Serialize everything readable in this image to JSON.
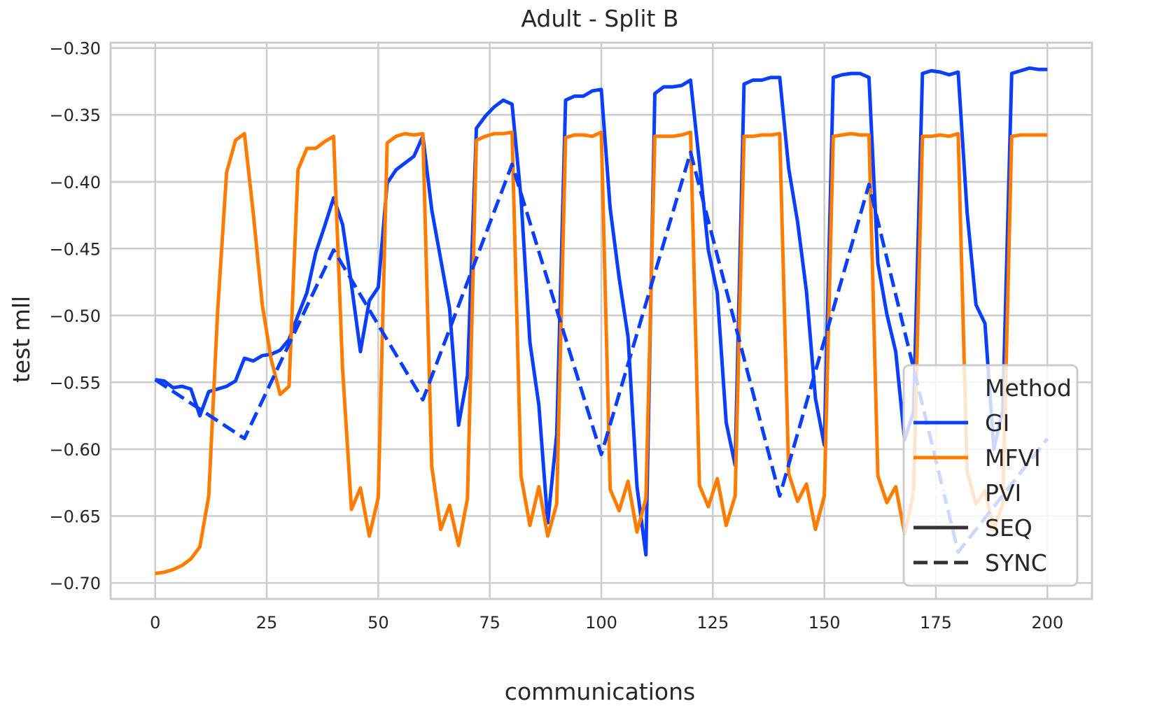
{
  "chart_data": {
    "type": "line",
    "title": "Adult - Split B",
    "xlabel": "communications",
    "ylabel": "test mll",
    "xlim": [
      -10,
      210
    ],
    "ylim": [
      -0.712,
      -0.296
    ],
    "grid": true,
    "xticks": [
      0,
      25,
      50,
      75,
      100,
      125,
      150,
      175,
      200
    ],
    "xtick_labels": [
      "0",
      "25",
      "50",
      "75",
      "100",
      "125",
      "150",
      "175",
      "200"
    ],
    "yticks": [
      -0.7,
      -0.65,
      -0.6,
      -0.55,
      -0.5,
      -0.45,
      -0.4,
      -0.35,
      -0.3
    ],
    "ytick_labels": [
      "−0.70",
      "−0.65",
      "−0.60",
      "−0.55",
      "−0.50",
      "−0.45",
      "−0.40",
      "−0.35",
      "−0.30"
    ],
    "legend": {
      "position": "lower-right",
      "entries": [
        {
          "label": "Method",
          "kind": "heading"
        },
        {
          "label": "GI",
          "kind": "color",
          "color": "#0b3ffb"
        },
        {
          "label": "MFVI",
          "kind": "color",
          "color": "#ff7c00"
        },
        {
          "label": "PVI",
          "kind": "color",
          "color": "#ffffff"
        },
        {
          "label": "SEQ",
          "kind": "style",
          "style": "solid",
          "color": "#333333"
        },
        {
          "label": "SYNC",
          "kind": "style",
          "style": "dashed",
          "color": "#333333"
        }
      ]
    },
    "series": [
      {
        "name": "GI",
        "style": "SEQ",
        "color": "#0b3ffb",
        "dash": "solid",
        "x": [
          0,
          2,
          4,
          6,
          8,
          10,
          12,
          14,
          16,
          18,
          20,
          22,
          24,
          26,
          28,
          30,
          32,
          34,
          36,
          38,
          40,
          42,
          44,
          46,
          48,
          50,
          52,
          54,
          56,
          58,
          60,
          62,
          64,
          66,
          68,
          70,
          72,
          74,
          76,
          78,
          80,
          82,
          84,
          86,
          88,
          90,
          92,
          94,
          96,
          98,
          100,
          102,
          104,
          106,
          108,
          110,
          112,
          114,
          116,
          118,
          120,
          122,
          124,
          126,
          128,
          130,
          132,
          134,
          136,
          138,
          140,
          142,
          144,
          146,
          148,
          150,
          152,
          154,
          156,
          158,
          160,
          162,
          164,
          166,
          168,
          170,
          172,
          174,
          176,
          178,
          180,
          182,
          184,
          186,
          188,
          190,
          192,
          194,
          196,
          198,
          200
        ],
        "y": [
          -0.548,
          -0.549,
          -0.554,
          -0.553,
          -0.555,
          -0.575,
          -0.557,
          -0.555,
          -0.553,
          -0.549,
          -0.532,
          -0.534,
          -0.53,
          -0.529,
          -0.526,
          -0.518,
          -0.5,
          -0.483,
          -0.453,
          -0.433,
          -0.412,
          -0.432,
          -0.477,
          -0.527,
          -0.489,
          -0.479,
          -0.401,
          -0.391,
          -0.386,
          -0.381,
          -0.366,
          -0.421,
          -0.458,
          -0.495,
          -0.582,
          -0.545,
          -0.36,
          -0.351,
          -0.344,
          -0.339,
          -0.342,
          -0.412,
          -0.52,
          -0.567,
          -0.655,
          -0.589,
          -0.339,
          -0.336,
          -0.336,
          -0.332,
          -0.331,
          -0.42,
          -0.472,
          -0.516,
          -0.628,
          -0.679,
          -0.334,
          -0.329,
          -0.329,
          -0.328,
          -0.324,
          -0.386,
          -0.451,
          -0.483,
          -0.58,
          -0.612,
          -0.327,
          -0.324,
          -0.324,
          -0.322,
          -0.322,
          -0.39,
          -0.43,
          -0.482,
          -0.562,
          -0.597,
          -0.322,
          -0.32,
          -0.319,
          -0.319,
          -0.322,
          -0.461,
          -0.499,
          -0.527,
          -0.593,
          -0.572,
          -0.319,
          -0.317,
          -0.318,
          -0.32,
          -0.318,
          -0.423,
          -0.492,
          -0.506,
          -0.6,
          -0.571,
          -0.319,
          -0.317,
          -0.315,
          -0.316,
          -0.316
        ]
      },
      {
        "name": "MFVI",
        "style": "SEQ",
        "color": "#ff7c00",
        "dash": "solid",
        "x": [
          0,
          2,
          4,
          6,
          8,
          10,
          12,
          14,
          16,
          18,
          20,
          22,
          24,
          26,
          28,
          30,
          32,
          34,
          36,
          38,
          40,
          42,
          44,
          46,
          48,
          50,
          52,
          54,
          56,
          58,
          60,
          62,
          64,
          66,
          68,
          70,
          72,
          74,
          76,
          78,
          80,
          82,
          84,
          86,
          88,
          90,
          92,
          94,
          96,
          98,
          100,
          102,
          104,
          106,
          108,
          110,
          112,
          114,
          116,
          118,
          120,
          122,
          124,
          126,
          128,
          130,
          132,
          134,
          136,
          138,
          140,
          142,
          144,
          146,
          148,
          150,
          152,
          154,
          156,
          158,
          160,
          162,
          164,
          166,
          168,
          170,
          172,
          174,
          176,
          178,
          180,
          182,
          184,
          186,
          188,
          190,
          192,
          194,
          196,
          198,
          200
        ],
        "y": [
          -0.693,
          -0.692,
          -0.69,
          -0.687,
          -0.682,
          -0.673,
          -0.635,
          -0.497,
          -0.393,
          -0.369,
          -0.364,
          -0.424,
          -0.492,
          -0.533,
          -0.559,
          -0.553,
          -0.391,
          -0.375,
          -0.375,
          -0.37,
          -0.366,
          -0.54,
          -0.645,
          -0.629,
          -0.665,
          -0.636,
          -0.371,
          -0.366,
          -0.364,
          -0.365,
          -0.364,
          -0.613,
          -0.66,
          -0.642,
          -0.672,
          -0.637,
          -0.369,
          -0.366,
          -0.364,
          -0.364,
          -0.363,
          -0.62,
          -0.657,
          -0.628,
          -0.665,
          -0.641,
          -0.367,
          -0.365,
          -0.365,
          -0.366,
          -0.363,
          -0.63,
          -0.646,
          -0.624,
          -0.662,
          -0.637,
          -0.366,
          -0.366,
          -0.366,
          -0.365,
          -0.363,
          -0.627,
          -0.643,
          -0.622,
          -0.657,
          -0.635,
          -0.366,
          -0.366,
          -0.365,
          -0.365,
          -0.364,
          -0.618,
          -0.639,
          -0.626,
          -0.66,
          -0.635,
          -0.366,
          -0.365,
          -0.364,
          -0.365,
          -0.365,
          -0.62,
          -0.64,
          -0.628,
          -0.663,
          -0.633,
          -0.366,
          -0.366,
          -0.365,
          -0.366,
          -0.364,
          -0.617,
          -0.641,
          -0.631,
          -0.66,
          -0.641,
          -0.366,
          -0.365,
          -0.365,
          -0.365,
          -0.365
        ]
      },
      {
        "name": "GI",
        "style": "SYNC",
        "color": "#0b3ffb",
        "dash": "dashed",
        "x": [
          0,
          20,
          40,
          60,
          80,
          100,
          120,
          140,
          160,
          180,
          200
        ],
        "y": [
          -0.548,
          -0.592,
          -0.451,
          -0.563,
          -0.387,
          -0.604,
          -0.378,
          -0.635,
          -0.402,
          -0.677,
          -0.592
        ]
      }
    ]
  }
}
